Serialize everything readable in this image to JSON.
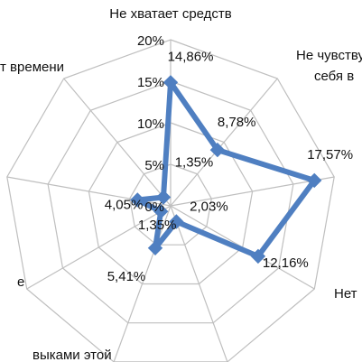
{
  "chart_data": {
    "type": "radar",
    "categories": [
      "Не хватает средств",
      "Не чувствую себя в",
      "",
      "Нет",
      "",
      "выками этой",
      "е",
      "",
      "т времени"
    ],
    "values": [
      14.86,
      8.78,
      17.57,
      12.16,
      2.03,
      5.41,
      1.35,
      4.05,
      1.35
    ],
    "data_labels": [
      "14,86%",
      "8,78%",
      "17,57%",
      "12,16%",
      "2,03%",
      "5,41%",
      "1,35%",
      "4,05%",
      "1,35%"
    ],
    "ylim": [
      0,
      20
    ],
    "ticks": [
      0,
      5,
      10,
      15,
      20
    ],
    "tick_labels": [
      "0%",
      "5%",
      "10%",
      "15%",
      "20%"
    ],
    "grid": true,
    "legend": "none",
    "colors": {
      "series": "#4f7fc1",
      "grid": "#bfbfbf"
    }
  }
}
